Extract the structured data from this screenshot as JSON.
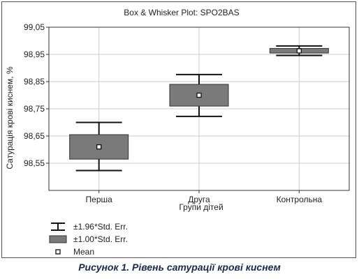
{
  "chart_data": {
    "type": "box",
    "title": "Box & Whisker Plot: SPO2BAS",
    "xlabel": "Групи дітей",
    "ylabel": "Сатурація крові киснем, %",
    "ylim": [
      98.45,
      99.05
    ],
    "yticks": [
      "99,05",
      "98,95",
      "98,85",
      "98,75",
      "98,65",
      "98,55"
    ],
    "ytick_values": [
      99.05,
      98.95,
      98.85,
      98.75,
      98.65,
      98.55
    ],
    "grid": true,
    "categories": [
      "Перша",
      "Друга",
      "Контрольна"
    ],
    "groups": [
      {
        "category": "Перша",
        "mean": 98.61,
        "se_low": 98.565,
        "se_high": 98.655,
        "ci_low": 98.523,
        "ci_high": 98.7
      },
      {
        "category": "Друга",
        "mean": 98.8,
        "se_low": 98.76,
        "se_high": 98.84,
        "ci_low": 98.722,
        "ci_high": 98.876
      },
      {
        "category": "Контрольна",
        "mean": 98.963,
        "se_low": 98.955,
        "se_high": 98.972,
        "ci_low": 98.946,
        "ci_high": 98.981
      }
    ],
    "legend": [
      {
        "label": "±1.96*Std. Err.",
        "symbol": "whisker"
      },
      {
        "label": "±1.00*Std. Err.",
        "symbol": "box"
      },
      {
        "label": "Mean",
        "symbol": "point"
      }
    ],
    "colors": {
      "box": "#7a7a7a",
      "box_stroke": "#333333",
      "whisker": "#111111",
      "grid": "#cccccc"
    }
  },
  "caption": "Рисунок 1. Рівень сатурації крові киснем"
}
